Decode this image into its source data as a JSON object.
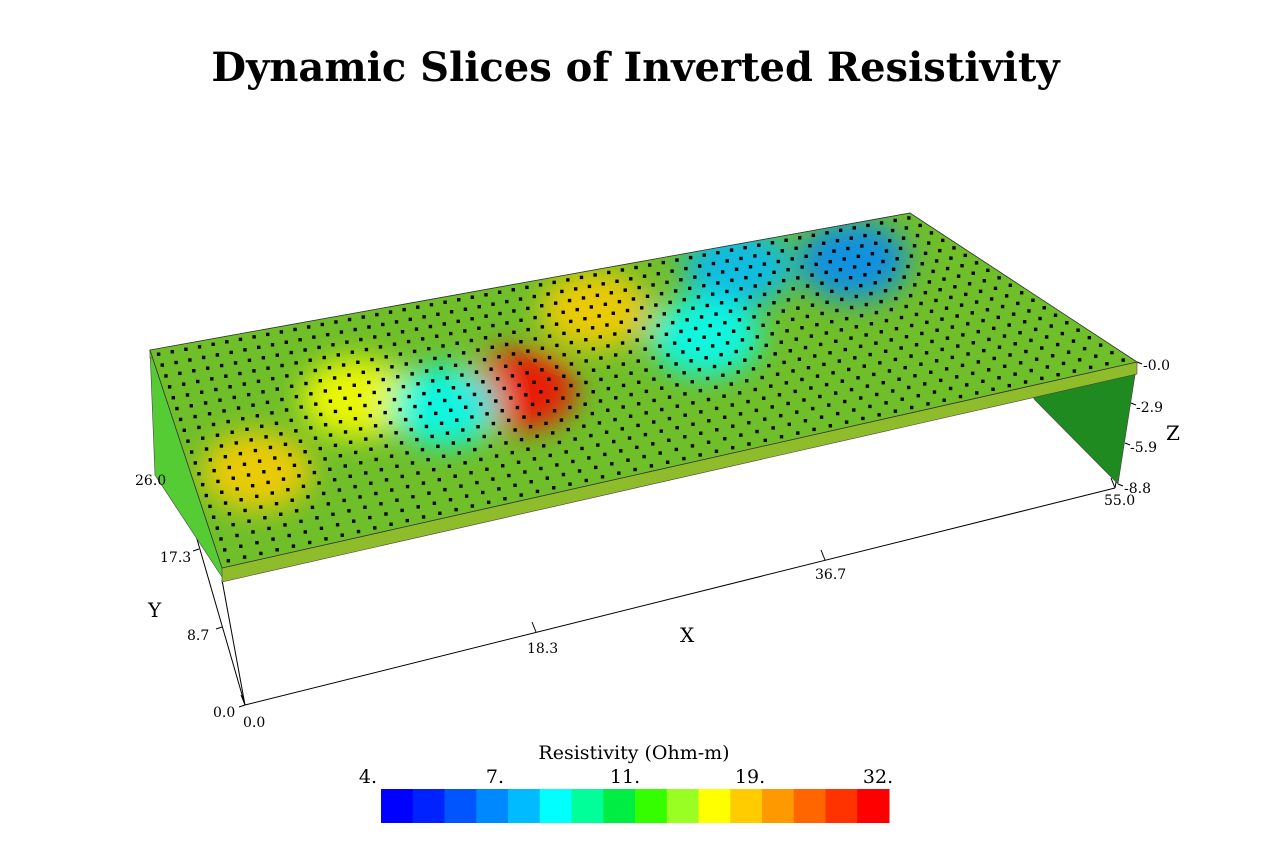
{
  "title": "Dynamic Slices of Inverted Resistivity",
  "chart_data": {
    "type": "heatmap",
    "title": "Dynamic Slices of Inverted Resistivity",
    "xlabel": "X",
    "ylabel": "Y",
    "zlabel": "Z",
    "x_ticks": [
      "0.0",
      "18.3",
      "36.7",
      "55.0"
    ],
    "y_ticks": [
      "0.0",
      "8.7",
      "17.3",
      "26.0"
    ],
    "z_ticks": [
      "-0.0",
      "-2.9",
      "-5.9",
      "-8.8"
    ],
    "xlim": [
      0.0,
      55.0
    ],
    "ylim": [
      0.0,
      26.0
    ],
    "zlim": [
      -8.8,
      0.0
    ],
    "colorbar": {
      "title": "Resistivity (Ohm-m)",
      "labels": [
        "4.",
        "7.",
        "11.",
        "19.",
        "32."
      ],
      "range": [
        4,
        32
      ],
      "scale": "log",
      "colors": [
        "#0000ff",
        "#0022ff",
        "#0055ff",
        "#0088ff",
        "#00bbff",
        "#00ffff",
        "#00ff99",
        "#00ee44",
        "#33ff00",
        "#99ff22",
        "#ffff00",
        "#ffcc00",
        "#ff9900",
        "#ff6600",
        "#ff3300",
        "#ff0000"
      ]
    },
    "slice": {
      "description_free": true,
      "anomalies": [
        {
          "x": 22,
          "y": 13,
          "value": 30
        },
        {
          "x": 30,
          "y": 21,
          "value": 18
        },
        {
          "x": 4,
          "y": 10,
          "value": 17
        },
        {
          "x": 12,
          "y": 16,
          "value": 16
        },
        {
          "x": 48,
          "y": 21,
          "value": 6
        },
        {
          "x": 41,
          "y": 23,
          "value": 7
        },
        {
          "x": 17,
          "y": 13,
          "value": 8
        },
        {
          "x": 35,
          "y": 15,
          "value": 8
        }
      ],
      "background_value": 11
    }
  }
}
